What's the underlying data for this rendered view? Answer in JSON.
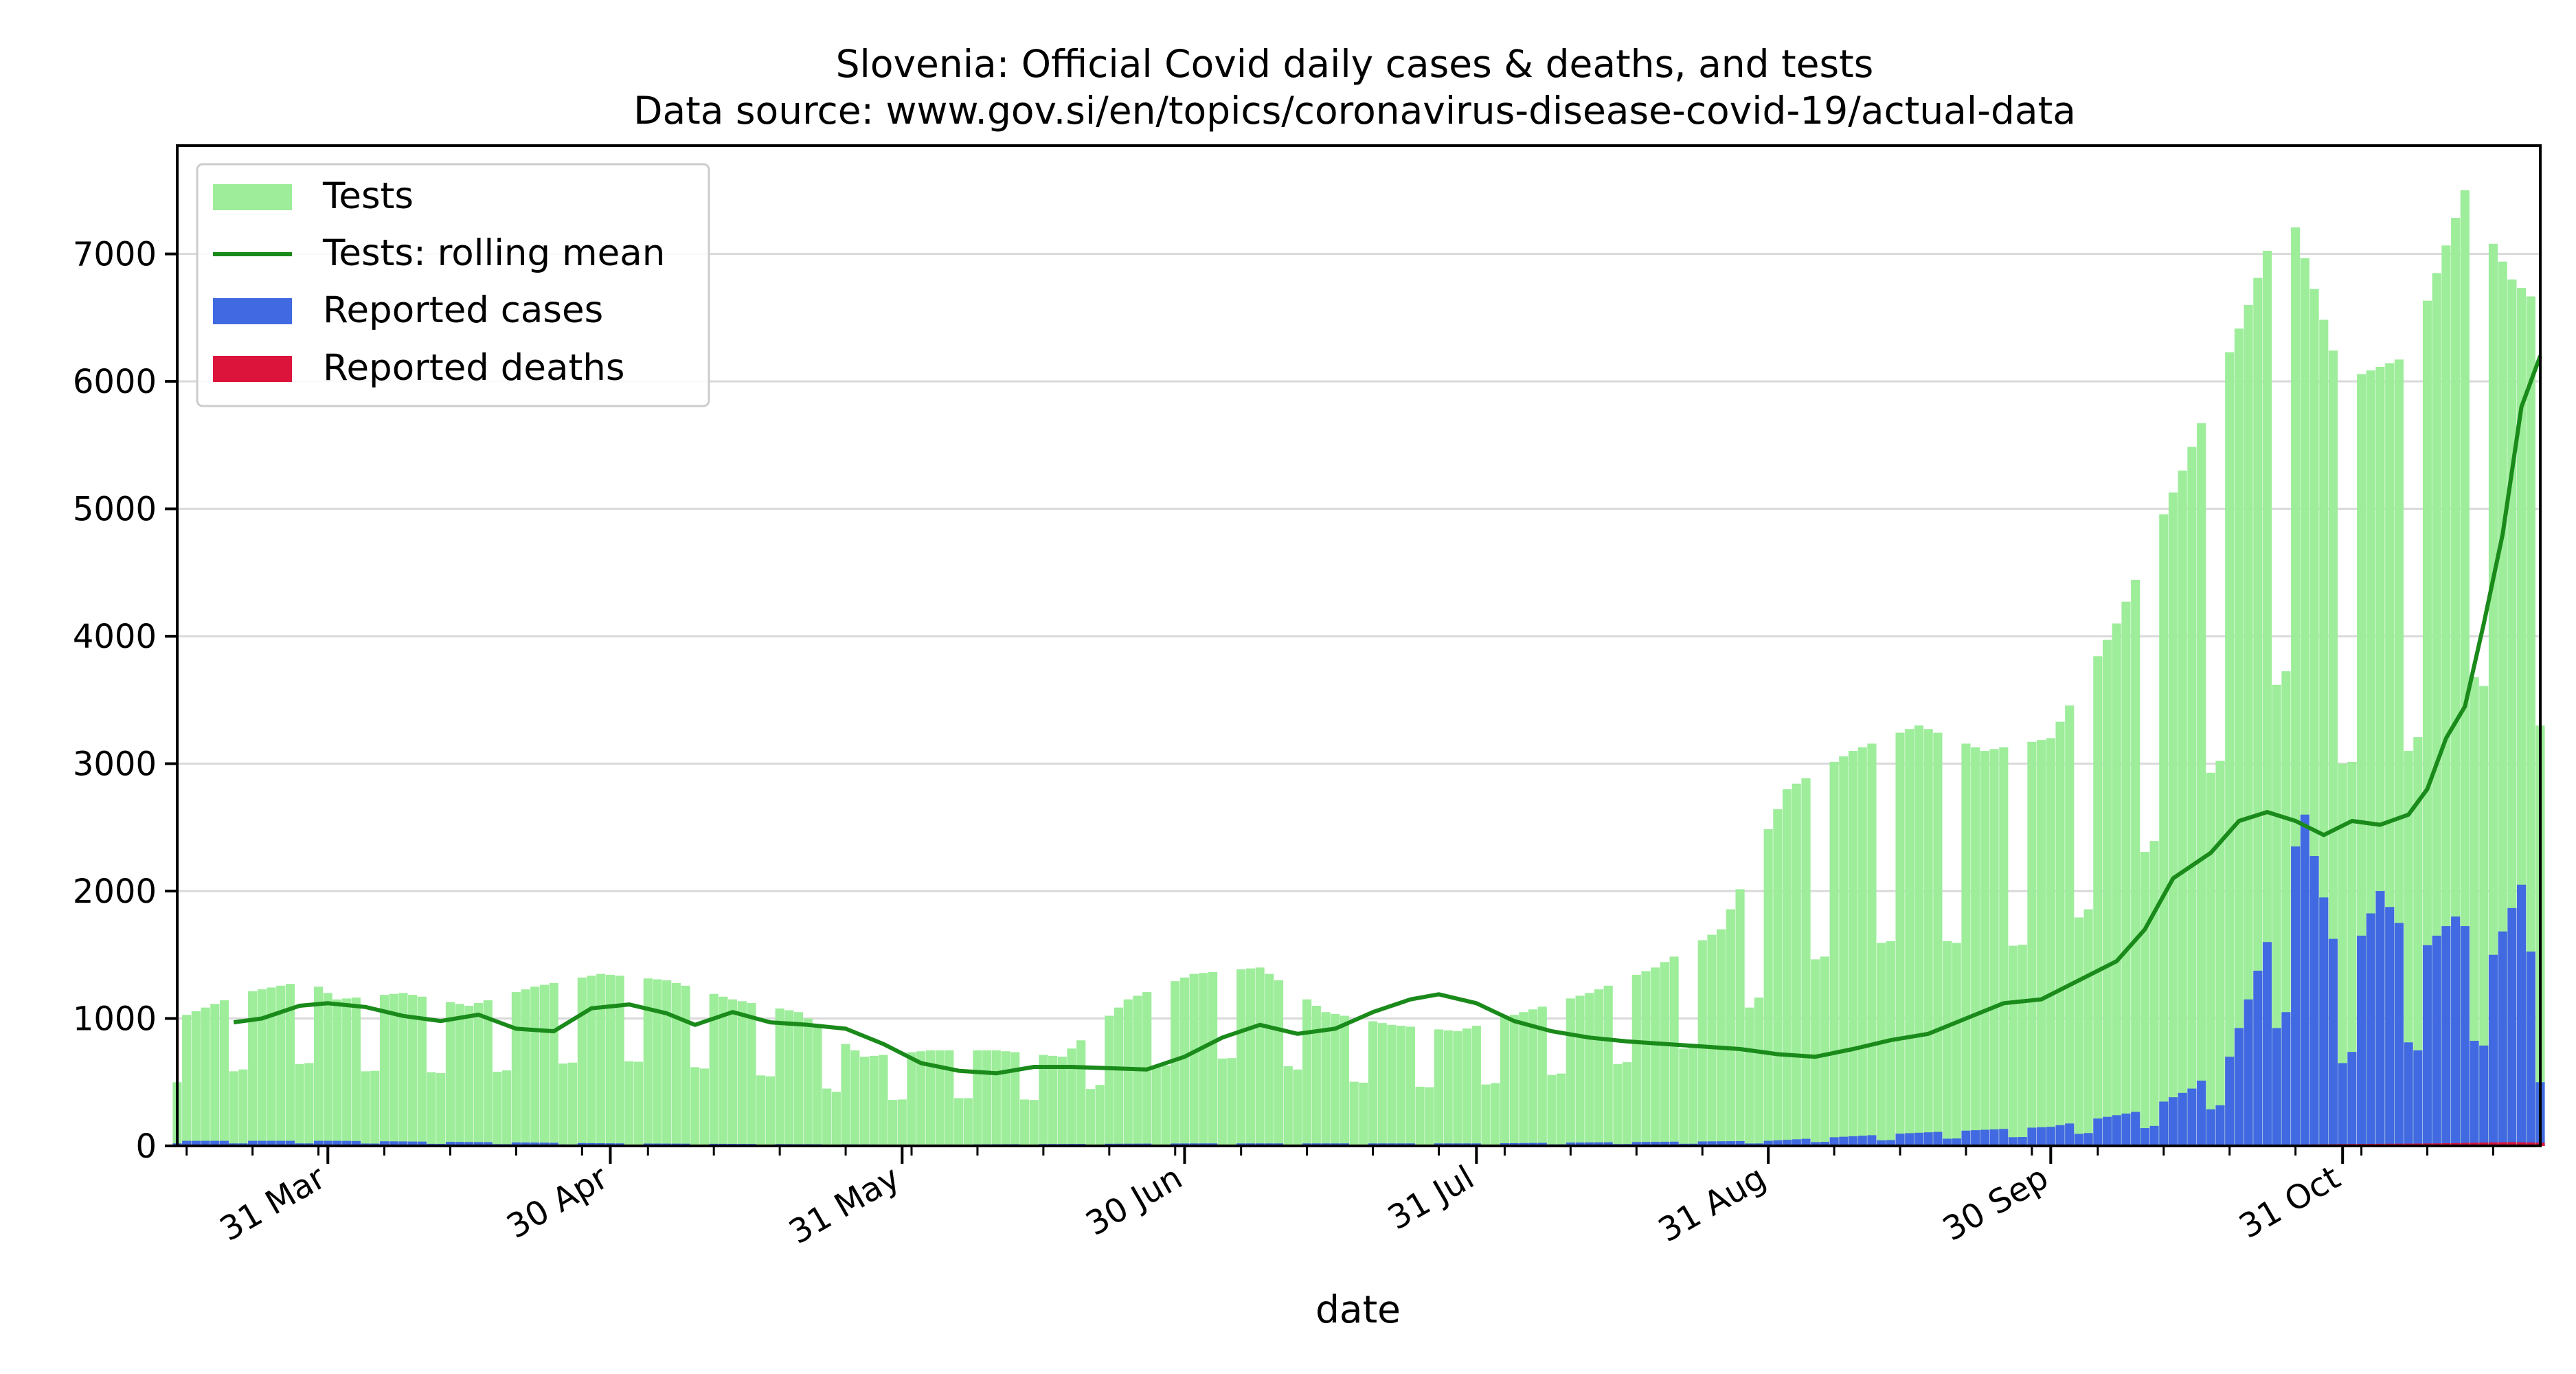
{
  "chart_data": {
    "type": "bar",
    "title": "Slovenia: Official Covid daily cases & deaths, and tests",
    "subtitle": "Data source: www.gov.si/en/topics/coronavirus-disease-covid-19/actual-data",
    "xlabel": "date",
    "ylabel": "",
    "x_range": [
      "2020-03-15",
      "2020-11-21"
    ],
    "ylim": [
      0,
      7850
    ],
    "y_ticks": [
      0,
      1000,
      2000,
      3000,
      4000,
      5000,
      6000,
      7000
    ],
    "x_ticks": [
      {
        "date": "2020-03-31",
        "label": "31 Mar"
      },
      {
        "date": "2020-04-30",
        "label": "30 Apr"
      },
      {
        "date": "2020-05-31",
        "label": "31 May"
      },
      {
        "date": "2020-06-30",
        "label": "30 Jun"
      },
      {
        "date": "2020-07-31",
        "label": "31 Jul"
      },
      {
        "date": "2020-08-31",
        "label": "31 Aug"
      },
      {
        "date": "2020-09-30",
        "label": "30 Sep"
      },
      {
        "date": "2020-10-31",
        "label": "31 Oct"
      }
    ],
    "grid": "horizontal",
    "legend_position": "top-left",
    "colors": {
      "tests": "#9ded9a",
      "rolling_mean": "#1a8a1a",
      "cases": "#4169e1",
      "deaths": "#dc143c"
    },
    "series": [
      {
        "name": "Tests",
        "kind": "bar",
        "points": [
          [
            "2020-03-15",
            1000
          ],
          [
            "2020-03-22",
            1200
          ],
          [
            "2020-03-29",
            1300
          ],
          [
            "2020-04-01",
            1150
          ],
          [
            "2020-04-08",
            1200
          ],
          [
            "2020-04-15",
            1100
          ],
          [
            "2020-04-22",
            1250
          ],
          [
            "2020-04-29",
            1350
          ],
          [
            "2020-05-06",
            1300
          ],
          [
            "2020-05-13",
            1150
          ],
          [
            "2020-05-20",
            1050
          ],
          [
            "2020-05-27",
            700
          ],
          [
            "2020-06-03",
            750
          ],
          [
            "2020-06-10",
            750
          ],
          [
            "2020-06-17",
            700
          ],
          [
            "2020-06-24",
            1150
          ],
          [
            "2020-07-01",
            1350
          ],
          [
            "2020-07-08",
            1400
          ],
          [
            "2020-07-15",
            1050
          ],
          [
            "2020-07-22",
            950
          ],
          [
            "2020-07-29",
            900
          ],
          [
            "2020-08-05",
            1050
          ],
          [
            "2020-08-12",
            1200
          ],
          [
            "2020-08-19",
            1400
          ],
          [
            "2020-08-26",
            1700
          ],
          [
            "2020-09-02",
            2800
          ],
          [
            "2020-09-09",
            3100
          ],
          [
            "2020-09-16",
            3300
          ],
          [
            "2020-09-23",
            3100
          ],
          [
            "2020-09-30",
            3200
          ],
          [
            "2020-10-07",
            4100
          ],
          [
            "2020-10-14",
            5300
          ],
          [
            "2020-10-21",
            6600
          ],
          [
            "2020-10-25",
            7450
          ],
          [
            "2020-10-31",
            6000
          ],
          [
            "2020-11-07",
            6200
          ],
          [
            "2020-11-13",
            7500
          ],
          [
            "2020-11-18",
            6800
          ],
          [
            "2020-11-21",
            6600
          ]
        ]
      },
      {
        "name": "Tests: rolling mean",
        "kind": "line",
        "points": [
          [
            "2020-03-21",
            970
          ],
          [
            "2020-03-24",
            1000
          ],
          [
            "2020-03-28",
            1100
          ],
          [
            "2020-03-31",
            1120
          ],
          [
            "2020-04-04",
            1090
          ],
          [
            "2020-04-08",
            1020
          ],
          [
            "2020-04-12",
            980
          ],
          [
            "2020-04-16",
            1030
          ],
          [
            "2020-04-20",
            920
          ],
          [
            "2020-04-24",
            900
          ],
          [
            "2020-04-28",
            1080
          ],
          [
            "2020-05-02",
            1110
          ],
          [
            "2020-05-06",
            1040
          ],
          [
            "2020-05-09",
            950
          ],
          [
            "2020-05-13",
            1050
          ],
          [
            "2020-05-17",
            970
          ],
          [
            "2020-05-21",
            950
          ],
          [
            "2020-05-25",
            920
          ],
          [
            "2020-05-29",
            800
          ],
          [
            "2020-06-02",
            650
          ],
          [
            "2020-06-06",
            590
          ],
          [
            "2020-06-10",
            570
          ],
          [
            "2020-06-14",
            620
          ],
          [
            "2020-06-18",
            620
          ],
          [
            "2020-06-22",
            610
          ],
          [
            "2020-06-26",
            600
          ],
          [
            "2020-06-30",
            700
          ],
          [
            "2020-07-04",
            850
          ],
          [
            "2020-07-08",
            950
          ],
          [
            "2020-07-12",
            880
          ],
          [
            "2020-07-16",
            920
          ],
          [
            "2020-07-20",
            1050
          ],
          [
            "2020-07-24",
            1150
          ],
          [
            "2020-07-27",
            1190
          ],
          [
            "2020-07-31",
            1120
          ],
          [
            "2020-08-04",
            980
          ],
          [
            "2020-08-08",
            900
          ],
          [
            "2020-08-12",
            850
          ],
          [
            "2020-08-16",
            820
          ],
          [
            "2020-08-20",
            800
          ],
          [
            "2020-08-24",
            780
          ],
          [
            "2020-08-28",
            760
          ],
          [
            "2020-09-01",
            720
          ],
          [
            "2020-09-05",
            700
          ],
          [
            "2020-09-09",
            760
          ],
          [
            "2020-09-13",
            830
          ],
          [
            "2020-09-17",
            880
          ],
          [
            "2020-09-21",
            1000
          ],
          [
            "2020-09-25",
            1120
          ],
          [
            "2020-09-29",
            1150
          ],
          [
            "2020-10-03",
            1300
          ],
          [
            "2020-10-07",
            1450
          ],
          [
            "2020-10-10",
            1700
          ],
          [
            "2020-10-13",
            2100
          ],
          [
            "2020-10-17",
            2300
          ],
          [
            "2020-10-20",
            2550
          ],
          [
            "2020-10-23",
            2620
          ],
          [
            "2020-10-26",
            2550
          ],
          [
            "2020-10-29",
            2440
          ],
          [
            "2020-11-01",
            2550
          ],
          [
            "2020-11-04",
            2520
          ],
          [
            "2020-11-07",
            2600
          ],
          [
            "2020-11-09",
            2800
          ],
          [
            "2020-11-11",
            3200
          ],
          [
            "2020-11-13",
            3450
          ],
          [
            "2020-11-15",
            4100
          ],
          [
            "2020-11-17",
            4800
          ],
          [
            "2020-11-19",
            5800
          ],
          [
            "2020-11-21",
            6200
          ]
        ]
      },
      {
        "name": "Reported cases",
        "kind": "bar",
        "points": [
          [
            "2020-03-15",
            40
          ],
          [
            "2020-04-01",
            40
          ],
          [
            "2020-05-01",
            20
          ],
          [
            "2020-06-01",
            10
          ],
          [
            "2020-07-01",
            20
          ],
          [
            "2020-08-01",
            20
          ],
          [
            "2020-08-31",
            40
          ],
          [
            "2020-09-15",
            100
          ],
          [
            "2020-09-30",
            150
          ],
          [
            "2020-10-10",
            280
          ],
          [
            "2020-10-15",
            450
          ],
          [
            "2020-10-19",
            700
          ],
          [
            "2020-10-23",
            1600
          ],
          [
            "2020-10-27",
            2600
          ],
          [
            "2020-10-31",
            1300
          ],
          [
            "2020-11-04",
            2000
          ],
          [
            "2020-11-08",
            1500
          ],
          [
            "2020-11-12",
            1800
          ],
          [
            "2020-11-16",
            1500
          ],
          [
            "2020-11-19",
            2050
          ],
          [
            "2020-11-21",
            1000
          ]
        ]
      },
      {
        "name": "Reported deaths",
        "kind": "bar",
        "points": [
          [
            "2020-10-25",
            10
          ],
          [
            "2020-11-01",
            15
          ],
          [
            "2020-11-10",
            20
          ],
          [
            "2020-11-18",
            30
          ],
          [
            "2020-11-21",
            25
          ]
        ]
      }
    ]
  }
}
